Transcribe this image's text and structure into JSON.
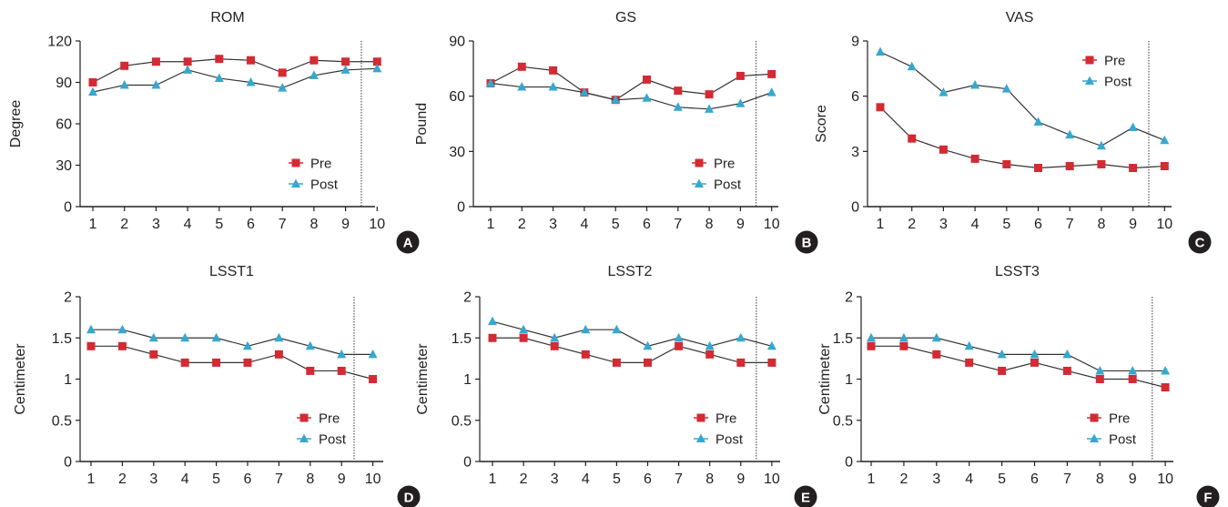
{
  "figure": {
    "panels": [
      "A",
      "B",
      "C",
      "D",
      "E",
      "F"
    ]
  },
  "colors": {
    "pre": "#d42a33",
    "post": "#35a8cf",
    "line": "#333333",
    "badge": "#231f20"
  },
  "chart_data": [
    {
      "type": "line",
      "title": "ROM",
      "ylabel": "Degree",
      "xlabel": "",
      "panel": "A",
      "x": [
        1,
        2,
        3,
        4,
        5,
        6,
        7,
        8,
        9,
        10
      ],
      "ylim": [
        0,
        120
      ],
      "yticks": [
        "0",
        "30",
        "60",
        "90",
        "120"
      ],
      "legend": "bottom-right",
      "cutoff": 9.5,
      "series": [
        {
          "name": "Pre",
          "values": [
            90,
            102,
            105,
            105,
            107,
            106,
            97,
            106,
            105,
            105
          ]
        },
        {
          "name": "Post",
          "values": [
            83,
            88,
            88,
            99,
            93,
            90,
            86,
            95,
            99,
            100
          ]
        }
      ]
    },
    {
      "type": "line",
      "title": "GS",
      "ylabel": "Pound",
      "xlabel": "",
      "panel": "B",
      "x": [
        1,
        2,
        3,
        4,
        5,
        6,
        7,
        8,
        9,
        10
      ],
      "ylim": [
        0,
        90
      ],
      "yticks": [
        "0",
        "30",
        "60",
        "90"
      ],
      "legend": "bottom-right",
      "cutoff": 9.5,
      "series": [
        {
          "name": "Pre",
          "values": [
            67,
            76,
            74,
            62,
            58,
            69,
            63,
            61,
            71,
            72
          ]
        },
        {
          "name": "Post",
          "values": [
            67,
            65,
            65,
            62,
            58,
            59,
            54,
            53,
            56,
            62
          ]
        }
      ]
    },
    {
      "type": "line",
      "title": "VAS",
      "ylabel": "Score",
      "xlabel": "",
      "panel": "C",
      "x": [
        1,
        2,
        3,
        4,
        5,
        6,
        7,
        8,
        9,
        10
      ],
      "ylim": [
        0,
        9
      ],
      "yticks": [
        "0",
        "3",
        "6",
        "9"
      ],
      "legend": "top-right",
      "cutoff": 9.5,
      "series": [
        {
          "name": "Pre",
          "values": [
            5.4,
            3.7,
            3.1,
            2.6,
            2.3,
            2.1,
            2.2,
            2.3,
            2.1,
            2.2
          ]
        },
        {
          "name": "Post",
          "values": [
            8.4,
            7.6,
            6.2,
            6.6,
            6.4,
            4.6,
            3.9,
            3.3,
            4.3,
            3.6
          ]
        }
      ]
    },
    {
      "type": "line",
      "title": "LSST1",
      "ylabel": "Centimeter",
      "xlabel": "",
      "panel": "D",
      "x": [
        1,
        2,
        3,
        4,
        5,
        6,
        7,
        8,
        9,
        10
      ],
      "ylim": [
        0,
        2
      ],
      "yticks": [
        "0",
        "0.5",
        "1",
        "1.5",
        "2"
      ],
      "legend": "bottom-right",
      "cutoff": 9.4,
      "series": [
        {
          "name": "Pre",
          "values": [
            1.4,
            1.4,
            1.3,
            1.2,
            1.2,
            1.2,
            1.3,
            1.1,
            1.1,
            1.0
          ]
        },
        {
          "name": "Post",
          "values": [
            1.6,
            1.6,
            1.5,
            1.5,
            1.5,
            1.4,
            1.5,
            1.4,
            1.3,
            1.3
          ]
        }
      ]
    },
    {
      "type": "line",
      "title": "LSST2",
      "ylabel": "Centimeter",
      "xlabel": "",
      "panel": "E",
      "x": [
        1,
        2,
        3,
        4,
        5,
        6,
        7,
        8,
        9,
        10
      ],
      "ylim": [
        0,
        2
      ],
      "yticks": [
        "0",
        "0.5",
        "1",
        "1.5",
        "2"
      ],
      "legend": "bottom-right",
      "cutoff": 9.5,
      "series": [
        {
          "name": "Pre",
          "values": [
            1.5,
            1.5,
            1.4,
            1.3,
            1.2,
            1.2,
            1.4,
            1.3,
            1.2,
            1.2
          ]
        },
        {
          "name": "Post",
          "values": [
            1.7,
            1.6,
            1.5,
            1.6,
            1.6,
            1.4,
            1.5,
            1.4,
            1.5,
            1.4
          ]
        }
      ]
    },
    {
      "type": "line",
      "title": "LSST3",
      "ylabel": "Centimeter",
      "xlabel": "",
      "panel": "F",
      "x": [
        1,
        2,
        3,
        4,
        5,
        6,
        7,
        8,
        9,
        10
      ],
      "ylim": [
        0,
        2
      ],
      "yticks": [
        "0",
        "0.5",
        "1",
        "1.5",
        "2"
      ],
      "legend": "bottom-right",
      "cutoff": 9.6,
      "series": [
        {
          "name": "Pre",
          "values": [
            1.4,
            1.4,
            1.3,
            1.2,
            1.1,
            1.2,
            1.1,
            1.0,
            1.0,
            0.9
          ]
        },
        {
          "name": "Post",
          "values": [
            1.5,
            1.5,
            1.5,
            1.4,
            1.3,
            1.3,
            1.3,
            1.1,
            1.1,
            1.1
          ]
        }
      ]
    }
  ]
}
